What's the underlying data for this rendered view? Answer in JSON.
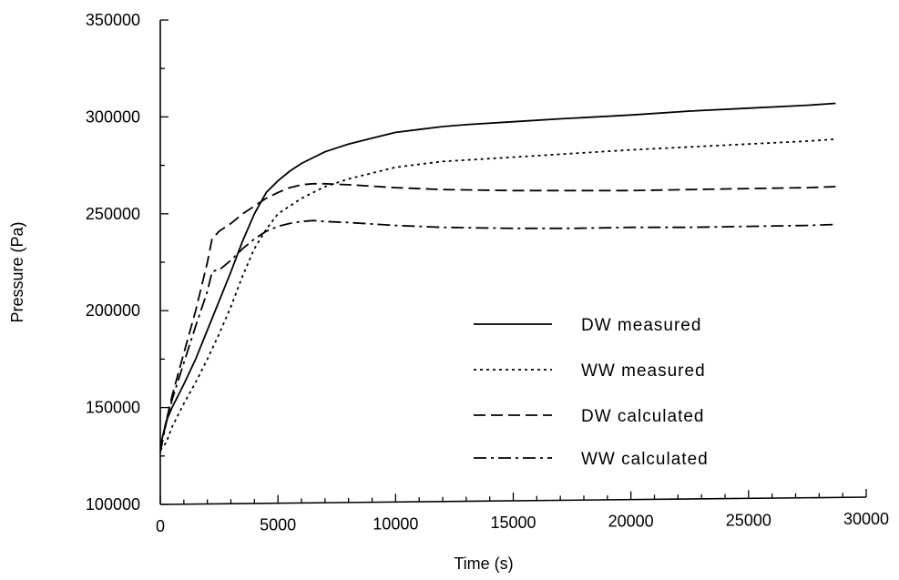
{
  "chart_data": {
    "type": "line",
    "title": "",
    "xlabel": "Time (s)",
    "ylabel": "Pressure (Pa)",
    "xlim": [
      0,
      30000
    ],
    "ylim": [
      100000,
      350000
    ],
    "xticks": [
      0,
      5000,
      10000,
      15000,
      20000,
      25000,
      30000
    ],
    "yticks": [
      100000,
      150000,
      200000,
      250000,
      300000,
      350000
    ],
    "xtick_labels": [
      "0",
      "5000",
      "10000",
      "15000",
      "20000",
      "25000",
      "30000"
    ],
    "ytick_labels": [
      "100000",
      "150000",
      "200000",
      "250000",
      "300000",
      "350000"
    ],
    "grid": false,
    "legend_position": "bottom-right",
    "series": [
      {
        "name": "DW measured",
        "style": "solid",
        "x": [
          0,
          250,
          500,
          1000,
          1500,
          2000,
          2500,
          3000,
          3500,
          4000,
          4500,
          5000,
          5500,
          6000,
          7000,
          8000,
          9000,
          10000,
          11000,
          12000,
          13000,
          15000,
          17000,
          20000,
          22500,
          25000,
          27500,
          28700
        ],
        "y": [
          130000,
          143000,
          150000,
          162000,
          175000,
          190000,
          205000,
          220000,
          236000,
          250000,
          261000,
          267000,
          272000,
          276000,
          282000,
          286000,
          289000,
          292000,
          293500,
          295000,
          296000,
          297500,
          299000,
          301000,
          303000,
          304500,
          306000,
          307000
        ]
      },
      {
        "name": "WW measured",
        "style": "dotted",
        "x": [
          0,
          250,
          500,
          1000,
          1500,
          2000,
          2500,
          3000,
          3500,
          4000,
          4500,
          5000,
          6000,
          7000,
          8000,
          9000,
          10000,
          12000,
          14000,
          16000,
          18000,
          20000,
          22500,
          25000,
          27500,
          28700
        ],
        "y": [
          128000,
          132000,
          140000,
          152000,
          163000,
          175000,
          188000,
          202000,
          218000,
          232000,
          242000,
          250000,
          258000,
          264000,
          268000,
          271000,
          274000,
          277000,
          278500,
          280000,
          281500,
          283000,
          284500,
          286000,
          287500,
          288500
        ]
      },
      {
        "name": "DW calculated",
        "style": "dashed",
        "x": [
          0,
          250,
          500,
          1000,
          1500,
          2000,
          2200,
          2500,
          3000,
          3500,
          4000,
          4500,
          5000,
          5500,
          6000,
          6500,
          7000,
          8000,
          10000,
          12000,
          15000,
          17500,
          20000,
          22500,
          25000,
          27500,
          28700
        ],
        "y": [
          127000,
          143000,
          156000,
          178000,
          200000,
          225000,
          237000,
          241000,
          245000,
          250000,
          254000,
          258000,
          261000,
          263500,
          265000,
          265500,
          265500,
          265000,
          263500,
          262500,
          262000,
          262000,
          262000,
          262500,
          263000,
          263500,
          264000
        ]
      },
      {
        "name": "WW calculated",
        "style": "dashdot",
        "x": [
          0,
          250,
          500,
          1000,
          1500,
          2000,
          2200,
          2600,
          3000,
          3500,
          4000,
          4500,
          5000,
          5500,
          6000,
          6500,
          7000,
          8000,
          10000,
          12000,
          15000,
          17500,
          20000,
          22500,
          25000,
          27500,
          28700
        ],
        "y": [
          127000,
          142000,
          154000,
          173000,
          192000,
          210000,
          220000,
          222000,
          226000,
          232000,
          237000,
          241000,
          243500,
          245000,
          246000,
          246500,
          246000,
          245500,
          244000,
          243000,
          242500,
          242500,
          243000,
          243000,
          243500,
          244000,
          244500
        ]
      }
    ]
  }
}
